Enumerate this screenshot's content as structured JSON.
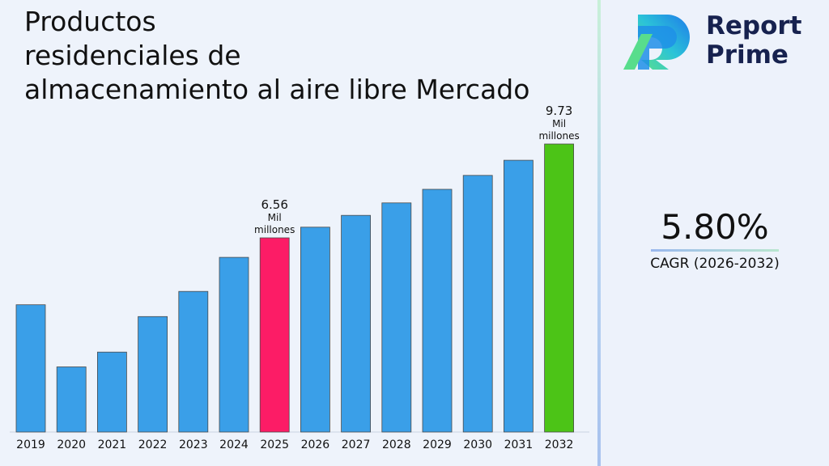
{
  "chart": {
    "title_lines": [
      "Productos",
      "residenciales de",
      "almacenamiento al aire libre Mercado"
    ]
  },
  "brand": {
    "line1": "Report",
    "line2": "Prime",
    "logo_icon": "report-prime-logo-icon"
  },
  "cagr": {
    "value": "5.80%",
    "label": "CAGR (2026-2032)"
  },
  "colors": {
    "bar_default": "#3a9fe8",
    "bar_highlight_2025": "#fc1c66",
    "bar_highlight_2032": "#4cc417"
  },
  "chart_data": {
    "type": "bar",
    "title": "Productos residenciales de almacenamiento al aire libre Mercado",
    "categories": [
      "2019",
      "2020",
      "2021",
      "2022",
      "2023",
      "2024",
      "2025",
      "2026",
      "2027",
      "2028",
      "2029",
      "2030",
      "2031",
      "2032"
    ],
    "values": [
      4.3,
      2.2,
      2.7,
      3.9,
      4.75,
      5.9,
      6.56,
      6.92,
      7.32,
      7.74,
      8.2,
      8.67,
      9.18,
      9.73
    ],
    "highlight": {
      "2025": "bar_highlight_2025",
      "2032": "bar_highlight_2032"
    },
    "data_labels": [
      {
        "category": "2025",
        "lines": [
          "6.56",
          "Mil",
          "millones"
        ]
      },
      {
        "category": "2032",
        "lines": [
          "9.73",
          "Mil",
          "millones"
        ]
      }
    ],
    "ylim": [
      0,
      10
    ],
    "grid": false,
    "legend": "none"
  }
}
